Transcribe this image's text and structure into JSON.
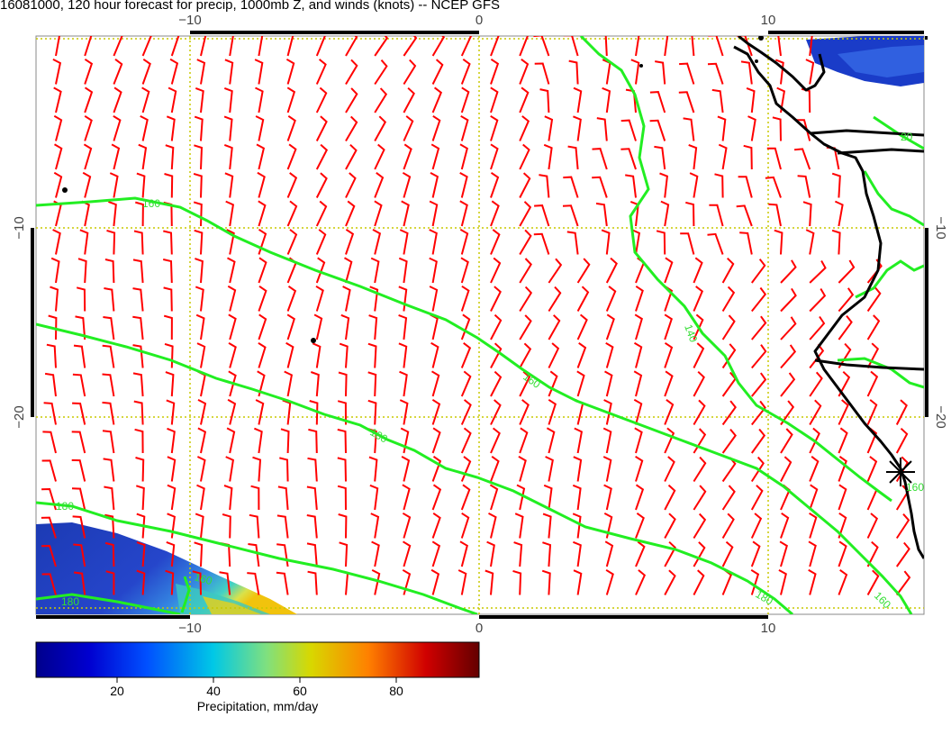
{
  "title": "16081000, 120 hour forecast for precip, 1000mb Z, and winds (knots) -- NCEP GFS",
  "map": {
    "lon_range": [
      -15.5,
      15.5
    ],
    "lat_range": [
      -30,
      0
    ],
    "grid_color": "#c8c800",
    "wind_color": "#ff0000",
    "contour_color": "#22ee22",
    "coast_color": "#000000",
    "top_ticks": [
      "−10",
      "0",
      "10"
    ],
    "bottom_ticks": [
      "−10",
      "0",
      "10"
    ],
    "left_ticks": [
      "−10",
      "−20"
    ],
    "right_ticks": [
      "−10",
      "−20"
    ],
    "contour_labels": [
      "160",
      "140",
      "160",
      "180",
      "180",
      "160",
      "180",
      "160",
      "180",
      "160",
      "20"
    ]
  },
  "colorbar": {
    "label": "Precipitation, mm/day",
    "ticks": [
      "20",
      "40",
      "60",
      "80"
    ],
    "colors": [
      "#00008c",
      "#0000d0",
      "#0050ff",
      "#00c8e6",
      "#7fe07f",
      "#d8d800",
      "#ff8000",
      "#d00000",
      "#640000"
    ]
  }
}
